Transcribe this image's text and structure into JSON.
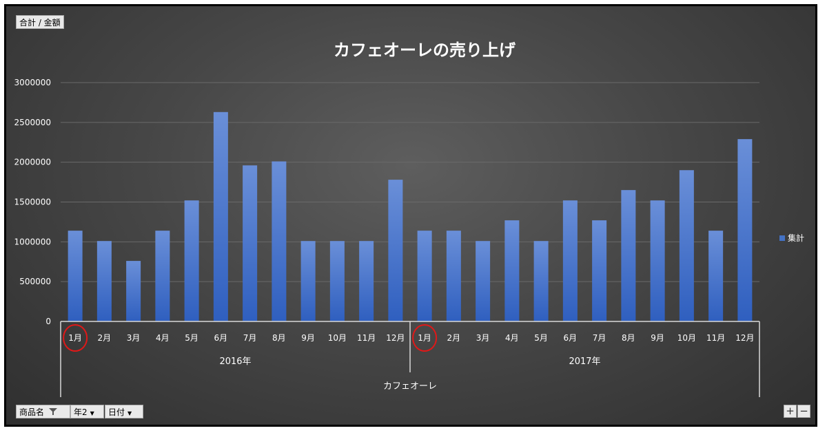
{
  "value_field_button": "合計 / 金額",
  "filters": [
    {
      "label": "商品名",
      "icon": "filter-funnel-icon"
    },
    {
      "label": "年2",
      "icon": "dropdown-arrow-icon"
    },
    {
      "label": "日付",
      "icon": "dropdown-arrow-icon"
    }
  ],
  "zoom": {
    "plus": "+",
    "minus": "−"
  },
  "chart_data": {
    "type": "bar",
    "title": "カフェオーレの売り上げ",
    "categories": [
      "1月",
      "2月",
      "3月",
      "4月",
      "5月",
      "6月",
      "7月",
      "8月",
      "9月",
      "10月",
      "11月",
      "12月",
      "1月",
      "2月",
      "3月",
      "4月",
      "5月",
      "6月",
      "7月",
      "8月",
      "9月",
      "10月",
      "11月",
      "12月"
    ],
    "groups": [
      {
        "label": "2016年",
        "count": 12
      },
      {
        "label": "2017年",
        "count": 12
      }
    ],
    "outer_group": "カフェオーレ",
    "series": [
      {
        "name": "集計",
        "color": "#4472c4",
        "values": [
          1140000,
          1010000,
          760000,
          1140000,
          1520000,
          2630000,
          1960000,
          2010000,
          1010000,
          1010000,
          1010000,
          1780000,
          1140000,
          1140000,
          1010000,
          1270000,
          1010000,
          1520000,
          1270000,
          1650000,
          1520000,
          1900000,
          1140000,
          2290000
        ]
      }
    ],
    "ylim": [
      0,
      3000000
    ],
    "yticks": [
      0,
      500000,
      1000000,
      1500000,
      2000000,
      2500000,
      3000000
    ],
    "grid": true,
    "legend_position": "right",
    "highlighted_categories": [
      0,
      12
    ]
  }
}
